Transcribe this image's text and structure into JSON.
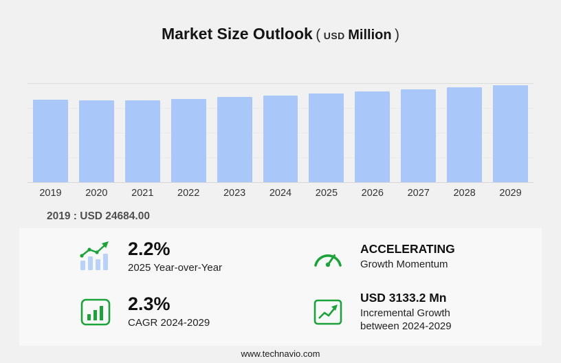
{
  "title": {
    "main": "Market Size Outlook",
    "open": "(",
    "usd": "USD",
    "million": "Million",
    "close": ")"
  },
  "chart_data": {
    "type": "bar",
    "title": "Market Size Outlook (USD Million)",
    "categories": [
      "2019",
      "2020",
      "2021",
      "2022",
      "2023",
      "2024",
      "2025",
      "2026",
      "2027",
      "2028",
      "2029"
    ],
    "values": [
      24684,
      24450,
      24560,
      25050,
      25600,
      26052,
      26625,
      27210,
      27850,
      28520,
      29185
    ],
    "ylim": [
      0,
      29500
    ],
    "xlabel": "",
    "ylabel": "USD Million",
    "grid": true,
    "legend": "none",
    "bar_color": "#a9c7f8"
  },
  "annotation": {
    "base_year": "2019 : USD  24684.00"
  },
  "stats": [
    {
      "icon": "yoy-bars-trend-icon",
      "value": "2.2%",
      "label": "2025 Year-over-Year"
    },
    {
      "icon": "speedometer-icon",
      "value": "ACCELERATING",
      "label": "Growth Momentum"
    },
    {
      "icon": "cagr-bar-chart-icon",
      "value": "2.3%",
      "label": "CAGR 2024-2029"
    },
    {
      "icon": "incremental-growth-icon",
      "value": "USD 3133.2 Mn",
      "label": "Incremental Growth between 2024-2029"
    }
  ],
  "footer": {
    "url": "www.technavio.com"
  },
  "colors": {
    "bar": "#a9c7f8",
    "accent_green": "#1aa338",
    "panel_bg": "#f8f8f8",
    "background": "#f1f1f1"
  }
}
